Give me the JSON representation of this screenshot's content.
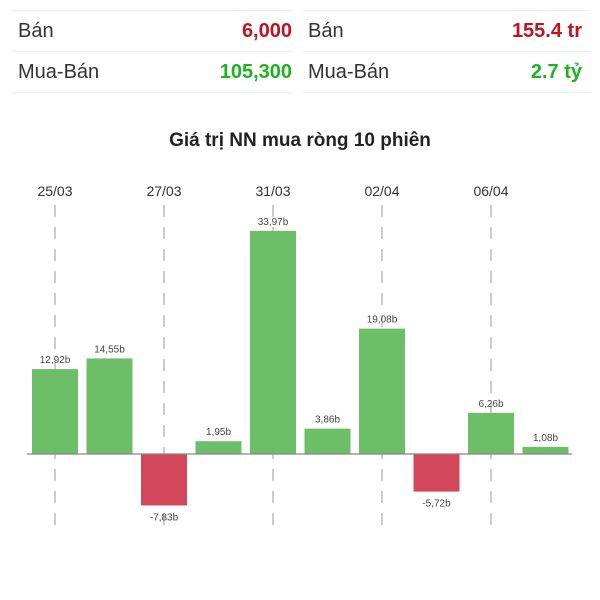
{
  "stats_left": {
    "rows": [
      {
        "label": "Bán",
        "value": "6,000",
        "color": "#c0131f"
      },
      {
        "label": "Mua-Bán",
        "value": "105,300",
        "color": "#1bb41f"
      }
    ]
  },
  "stats_right": {
    "rows": [
      {
        "label": "Bán",
        "value": "155.4 tr",
        "color": "#c0131f"
      },
      {
        "label": "Mua-Bán",
        "value": "2.7 tỷ",
        "color": "#1bb41f"
      }
    ]
  },
  "chart_data": {
    "type": "bar",
    "title": "Giá trị NN mua ròng 10 phiên",
    "values": [
      12.92,
      14.55,
      -7.83,
      1.95,
      33.97,
      3.86,
      19.08,
      -5.72,
      6.26,
      1.08
    ],
    "value_labels": [
      "12,92b",
      "14,55b",
      "-7,83b",
      "1,95b",
      "33,97b",
      "3,86b",
      "19,08b",
      "-5,72b",
      "6,26b",
      "1,08b"
    ],
    "x_tick_labels": [
      {
        "bar_index": 0,
        "label": "25/03"
      },
      {
        "bar_index": 2,
        "label": "27/03"
      },
      {
        "bar_index": 4,
        "label": "31/03"
      },
      {
        "bar_index": 6,
        "label": "02/04"
      },
      {
        "bar_index": 8,
        "label": "06/04"
      }
    ],
    "colors": {
      "positive": "#6dbf67",
      "negative": "#d2475a"
    },
    "grid": "dashed vertical at tick labels"
  }
}
